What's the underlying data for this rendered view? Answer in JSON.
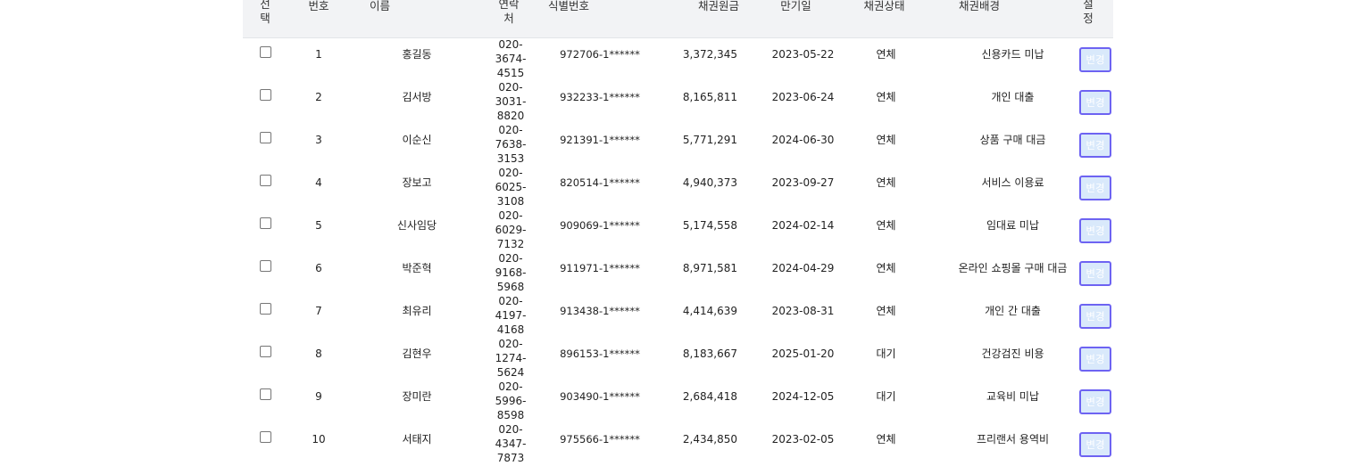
{
  "table": {
    "headers": {
      "select": "선\n택",
      "no": "번호",
      "name": "이름",
      "phone": "연락\n처",
      "id": "식별번호",
      "amount": "채권원금",
      "due": "만기일",
      "status": "채권상태",
      "background": "채권배경",
      "settings": "설\n정"
    },
    "edit_label": "변경",
    "rows": [
      {
        "no": "1",
        "name": "홍길동",
        "phone": "020-3674-\n4515",
        "id": "972706-1******",
        "amount": "3,372,345",
        "due": "2023-05-22",
        "status": "연체",
        "background": "신용카드 미납"
      },
      {
        "no": "2",
        "name": "김서방",
        "phone": "020-3031-\n8820",
        "id": "932233-1******",
        "amount": "8,165,811",
        "due": "2023-06-24",
        "status": "연체",
        "background": "개인 대출"
      },
      {
        "no": "3",
        "name": "이순신",
        "phone": "020-7638-\n3153",
        "id": "921391-1******",
        "amount": "5,771,291",
        "due": "2024-06-30",
        "status": "연체",
        "background": "상품 구매 대금"
      },
      {
        "no": "4",
        "name": "장보고",
        "phone": "020-6025-\n3108",
        "id": "820514-1******",
        "amount": "4,940,373",
        "due": "2023-09-27",
        "status": "연체",
        "background": "서비스 이용료"
      },
      {
        "no": "5",
        "name": "신사임당",
        "phone": "020-6029-\n7132",
        "id": "909069-1******",
        "amount": "5,174,558",
        "due": "2024-02-14",
        "status": "연체",
        "background": "임대료 미납"
      },
      {
        "no": "6",
        "name": "박준혁",
        "phone": "020-9168-\n5968",
        "id": "911971-1******",
        "amount": "8,971,581",
        "due": "2024-04-29",
        "status": "연체",
        "background": "온라인 쇼핑몰 구매 대금"
      },
      {
        "no": "7",
        "name": "최유리",
        "phone": "020-4197-\n4168",
        "id": "913438-1******",
        "amount": "4,414,639",
        "due": "2023-08-31",
        "status": "연체",
        "background": "개인 간 대출"
      },
      {
        "no": "8",
        "name": "김현우",
        "phone": "020-1274-\n5624",
        "id": "896153-1******",
        "amount": "8,183,667",
        "due": "2025-01-20",
        "status": "대기",
        "background": "건강검진 비용"
      },
      {
        "no": "9",
        "name": "장미란",
        "phone": "020-5996-\n8598",
        "id": "903490-1******",
        "amount": "2,684,418",
        "due": "2024-12-05",
        "status": "대기",
        "background": "교육비 미납"
      },
      {
        "no": "10",
        "name": "서태지",
        "phone": "020-4347-\n7873",
        "id": "975566-1******",
        "amount": "2,434,850",
        "due": "2023-02-05",
        "status": "연체",
        "background": "프리랜서 용역비"
      }
    ]
  }
}
